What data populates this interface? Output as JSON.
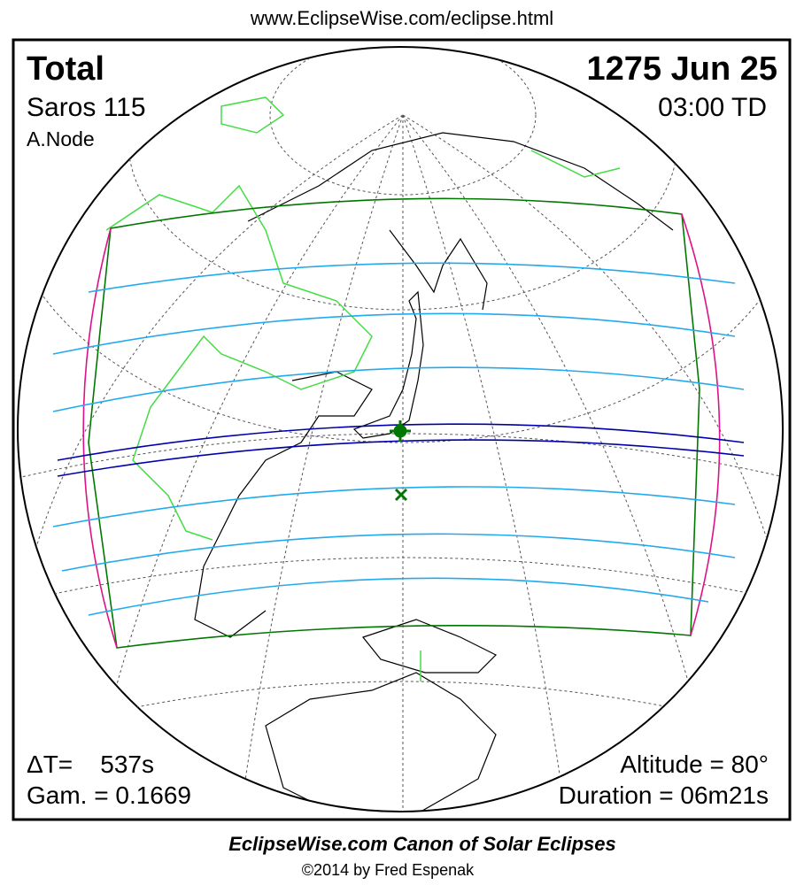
{
  "header": {
    "url": "www.EclipseWise.com/eclipse.html"
  },
  "panel": {
    "eclipse_type": "Total",
    "date": "1275 Jun 25",
    "saros": "Saros 115",
    "time": "03:00 TD",
    "node": "A.Node",
    "delta_t": "ΔT=    537s",
    "gamma": "Gam. = 0.1669",
    "altitude": "Altitude = 80°",
    "duration": "Duration = 06m21s"
  },
  "footer": {
    "title": "EclipseWise.com Canon of Solar Eclipses",
    "credit": "©2014 by Fred Espenak"
  }
}
